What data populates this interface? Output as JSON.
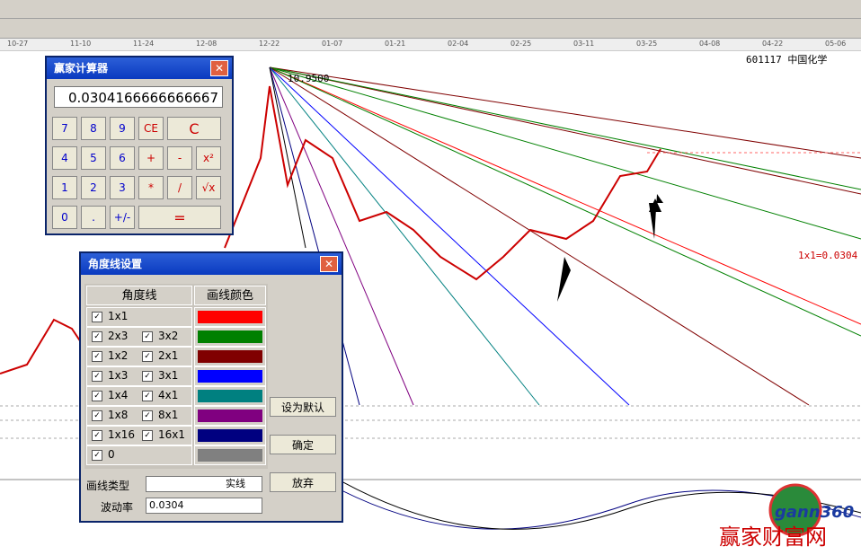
{
  "toolbar": {
    "dates": [
      "10-27",
      "11-10",
      "11-24",
      "12-08",
      "12-22",
      "01-07",
      "01-21",
      "02-04",
      "02-25",
      "03-11",
      "03-25",
      "04-08",
      "04-22",
      "05-06"
    ]
  },
  "chart": {
    "stock": "601117 中国化学",
    "start_price": "10.9500",
    "line_label": "1x1=0.0304"
  },
  "calculator": {
    "title": "赢家计算器",
    "display": "0.0304166666666667",
    "buttons": [
      [
        "7",
        "8",
        "9",
        "CE",
        "C"
      ],
      [
        "4",
        "5",
        "6",
        "+",
        "-",
        "x²"
      ],
      [
        "1",
        "2",
        "3",
        "*",
        "/",
        "√x"
      ],
      [
        "0",
        ".",
        "+/-",
        "="
      ]
    ]
  },
  "dialog": {
    "title": "角度线设置",
    "header": [
      "角度线",
      "画线颜色"
    ],
    "rows": [
      {
        "labels": [
          "1x1"
        ],
        "color": "#ff0000"
      },
      {
        "labels": [
          "2x3",
          "3x2"
        ],
        "color": "#008000"
      },
      {
        "labels": [
          "1x2",
          "2x1"
        ],
        "color": "#800000"
      },
      {
        "labels": [
          "1x3",
          "3x1"
        ],
        "color": "#0000ff"
      },
      {
        "labels": [
          "1x4",
          "4x1"
        ],
        "color": "#008080"
      },
      {
        "labels": [
          "1x8",
          "8x1"
        ],
        "color": "#800080"
      },
      {
        "labels": [
          "1x16",
          "16x1"
        ],
        "color": "#000080"
      },
      {
        "labels": [
          "0"
        ],
        "color": "#808080"
      }
    ],
    "buttons": [
      "设为默认",
      "确定",
      "放弃"
    ],
    "line_type_label": "画线类型",
    "line_type": "实线",
    "volatility_label": "波动率",
    "volatility": "0.0304"
  },
  "watermark": {
    "logo": "gann360",
    "site": "赢家财富网"
  }
}
